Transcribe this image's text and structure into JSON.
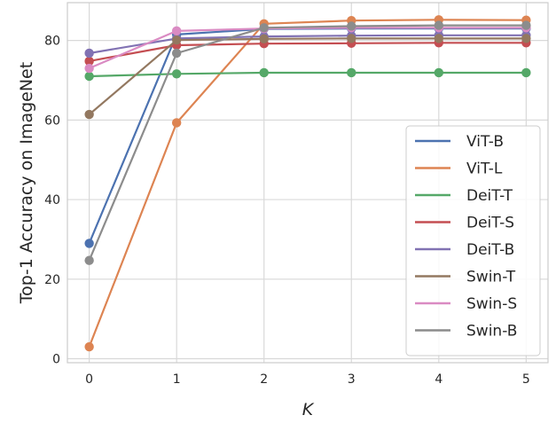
{
  "chart_data": {
    "type": "line",
    "title": "",
    "xlabel": "K",
    "ylabel": "Top-1 Accuracy on ImageNet",
    "x": [
      0,
      1,
      2,
      3,
      4,
      5
    ],
    "xticks": [
      "0",
      "1",
      "2",
      "3",
      "4",
      "5"
    ],
    "yticks": [
      "0",
      "20",
      "40",
      "60",
      "80"
    ],
    "xlim": [
      -0.25,
      5.25
    ],
    "ylim": [
      -1,
      89.5
    ],
    "grid": true,
    "legend_position": "lower-right",
    "series": [
      {
        "name": "ViT-B",
        "color": "#4c72b0",
        "values": [
          29.0,
          81.5,
          82.9,
          83.0,
          83.0,
          83.0
        ]
      },
      {
        "name": "ViT-L",
        "color": "#dd8452",
        "values": [
          3.0,
          59.3,
          84.2,
          85.0,
          85.2,
          85.1
        ]
      },
      {
        "name": "DeiT-T",
        "color": "#55a868",
        "values": [
          71.0,
          71.6,
          71.9,
          71.9,
          71.9,
          71.9
        ]
      },
      {
        "name": "DeiT-S",
        "color": "#c44e52",
        "values": [
          74.8,
          78.8,
          79.2,
          79.3,
          79.4,
          79.4
        ]
      },
      {
        "name": "DeiT-B",
        "color": "#8172b3",
        "values": [
          76.8,
          80.5,
          81.0,
          81.2,
          81.3,
          81.3
        ]
      },
      {
        "name": "Swin-T",
        "color": "#937860",
        "values": [
          61.4,
          80.1,
          80.4,
          80.5,
          80.5,
          80.5
        ]
      },
      {
        "name": "Swin-S",
        "color": "#da8bc3",
        "values": [
          73.0,
          82.4,
          83.0,
          83.2,
          83.2,
          83.2
        ]
      },
      {
        "name": "Swin-B",
        "color": "#8c8c8c",
        "values": [
          24.7,
          76.8,
          83.2,
          83.6,
          83.8,
          83.8
        ]
      }
    ]
  }
}
